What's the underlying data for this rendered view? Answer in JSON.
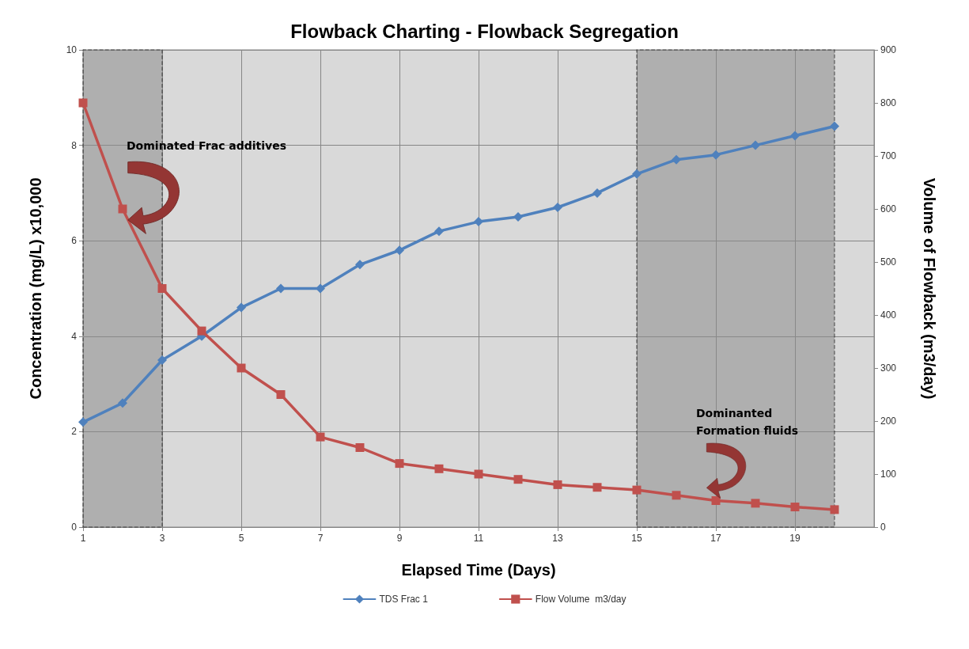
{
  "chart_data": {
    "type": "line",
    "title": "Flowback Charting - Flowback Segregation",
    "xlabel": "Elapsed Time (Days)",
    "ylabel": "Concentration (mg/L) x10,000",
    "y2label": "Volume of Flowback (m3/day)",
    "x": [
      1,
      2,
      3,
      4,
      5,
      6,
      7,
      8,
      9,
      10,
      11,
      12,
      13,
      14,
      15,
      16,
      17,
      18,
      19,
      20
    ],
    "series": [
      {
        "name": "TDS Frac 1",
        "color": "#4f81bd",
        "marker": "diamond",
        "values": [
          2.2,
          2.6,
          3.5,
          4.0,
          4.6,
          5.0,
          5.0,
          5.5,
          5.8,
          6.2,
          6.4,
          6.5,
          6.7,
          7.0,
          7.4,
          7.7,
          7.8,
          8.0,
          8.2,
          8.4
        ]
      },
      {
        "name": "Flow Volume  m3/day",
        "color": "#c0504d",
        "marker": "square",
        "axis": "y2",
        "values": [
          800,
          600,
          450,
          370,
          300,
          250,
          170,
          150,
          120,
          110,
          100,
          90,
          80,
          75,
          70,
          60,
          50,
          45,
          38,
          33
        ]
      }
    ],
    "xlim": [
      1,
      21
    ],
    "xticks": [
      1,
      3,
      5,
      7,
      9,
      11,
      13,
      15,
      17,
      19
    ],
    "ylim": [
      0,
      10
    ],
    "yticks": [
      0,
      2,
      4,
      6,
      8,
      10
    ],
    "y2lim": [
      0,
      900
    ],
    "y2ticks": [
      0,
      100,
      200,
      300,
      400,
      500,
      600,
      700,
      800,
      900
    ],
    "bands": [
      {
        "axis": "x",
        "from": 1,
        "to": 3,
        "color": "#8c8c8c"
      },
      {
        "axis": "x",
        "from": 15,
        "to": 20,
        "color": "#8c8c8c"
      }
    ],
    "annotations": [
      "Dominated Frac additives",
      "Dominanted Formation fluids"
    ],
    "grid": true,
    "legend": "bottom",
    "line_style": "solid"
  }
}
